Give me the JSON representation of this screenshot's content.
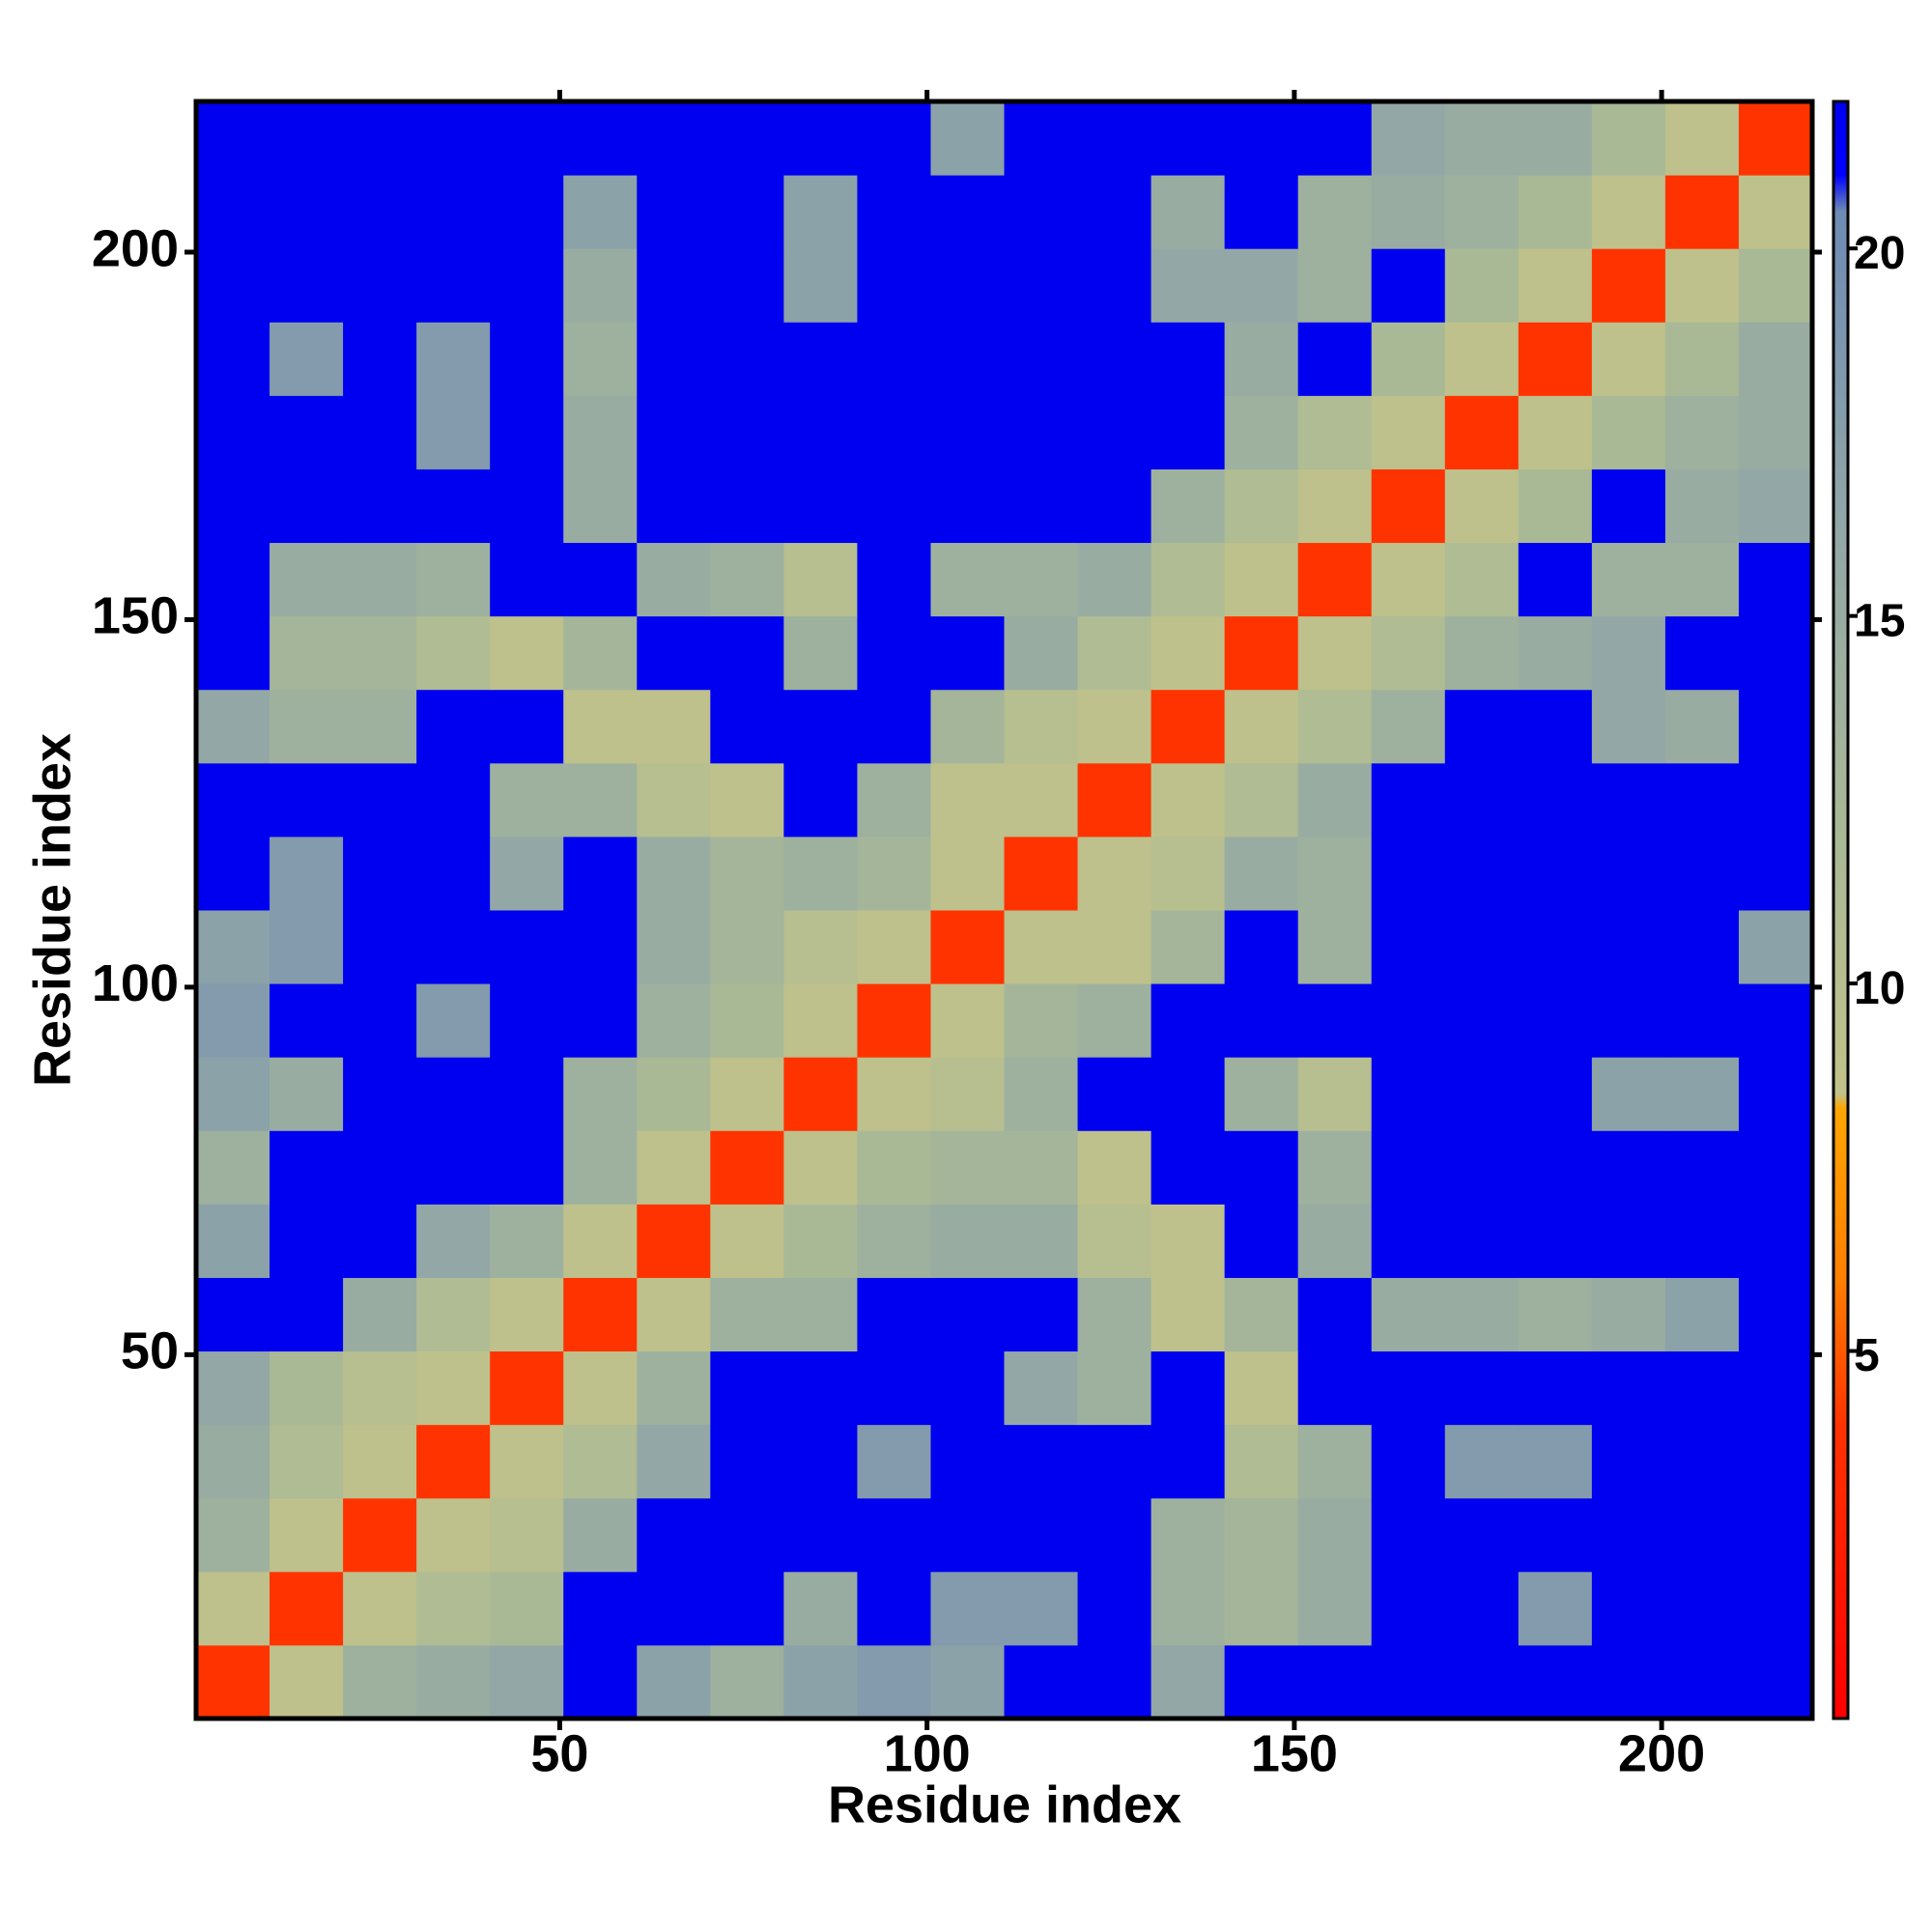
{
  "chart_data": {
    "type": "heatmap",
    "xlabel": "Residue index",
    "ylabel": "Residue index",
    "xbins": [
      0.5,
      10.5,
      20.5,
      30.5,
      40.5,
      50.5,
      60.5,
      70.5,
      80.5,
      90.5,
      100.5,
      110.5,
      120.5,
      130.5,
      140.5,
      150.5,
      160.5,
      170.5,
      180.5,
      190.5,
      200.5,
      210.5,
      220.5
    ],
    "ybins": [
      0.5,
      10.5,
      20.5,
      30.5,
      40.5,
      50.5,
      60.5,
      70.5,
      80.5,
      90.5,
      100.5,
      110.5,
      120.5,
      130.5,
      140.5,
      150.5,
      160.5,
      170.5,
      180.5,
      190.5,
      200.5,
      210.5,
      220.5
    ],
    "xlim": [
      0.5,
      220.5
    ],
    "ylim": [
      0.5,
      220.5
    ],
    "xticks": [
      50,
      100,
      150,
      200
    ],
    "yticks": [
      50,
      100,
      150,
      200
    ],
    "zlim": [
      0,
      22
    ],
    "zticks": [
      5,
      10,
      15,
      20
    ],
    "colorscale": [
      [
        0,
        "#ff0000"
      ],
      [
        4,
        "#ff3300"
      ],
      [
        6,
        "#ff8000"
      ],
      [
        8.3,
        "#ffa500"
      ],
      [
        8.5,
        "#c2c28a"
      ],
      [
        12,
        "#a9b996"
      ],
      [
        16,
        "#93a8a6"
      ],
      [
        20.5,
        "#6e8bb3"
      ],
      [
        21,
        "#0000ff"
      ],
      [
        22,
        "#0000f0"
      ]
    ],
    "z": [
      [
        4,
        9,
        14,
        15,
        16,
        22,
        17,
        14,
        17,
        18,
        17,
        22,
        22,
        16,
        22,
        22,
        22,
        22,
        22,
        22,
        22,
        22
      ],
      [
        9,
        4,
        9,
        11,
        12,
        22,
        22,
        22,
        15,
        22,
        18,
        18,
        22,
        14,
        13,
        15,
        22,
        22,
        18,
        22,
        22,
        22
      ],
      [
        14,
        9,
        4,
        9,
        10,
        15,
        22,
        22,
        22,
        22,
        22,
        22,
        22,
        14,
        13,
        15,
        22,
        22,
        22,
        22,
        22,
        22
      ],
      [
        15,
        11,
        9,
        4,
        9,
        11,
        16,
        22,
        22,
        18,
        22,
        22,
        22,
        22,
        11,
        14,
        22,
        18,
        18,
        22,
        22,
        22
      ],
      [
        16,
        12,
        10,
        9,
        4,
        9,
        14,
        22,
        22,
        22,
        22,
        16,
        14,
        22,
        9,
        22,
        22,
        22,
        22,
        22,
        22,
        22
      ],
      [
        22,
        22,
        15,
        11,
        9,
        4,
        9,
        14,
        14,
        22,
        22,
        22,
        14,
        9,
        13,
        22,
        15,
        15,
        14,
        15,
        17,
        22
      ],
      [
        17,
        22,
        22,
        16,
        14,
        9,
        4,
        9,
        12,
        14,
        15,
        15,
        10,
        9,
        22,
        15,
        22,
        22,
        22,
        22,
        22,
        22
      ],
      [
        14,
        22,
        22,
        22,
        22,
        14,
        9,
        4,
        9,
        12,
        13,
        13,
        9,
        22,
        22,
        14,
        22,
        22,
        22,
        22,
        22,
        22
      ],
      [
        17,
        15,
        22,
        22,
        22,
        14,
        12,
        9,
        4,
        9,
        10,
        14,
        22,
        22,
        14,
        10,
        22,
        22,
        22,
        17,
        17,
        22
      ],
      [
        18,
        22,
        22,
        18,
        22,
        22,
        14,
        12,
        9,
        4,
        9,
        13,
        14,
        22,
        22,
        22,
        22,
        22,
        22,
        22,
        22,
        22
      ],
      [
        17,
        18,
        22,
        22,
        22,
        22,
        15,
        13,
        10,
        9,
        4,
        9,
        9,
        13,
        22,
        14,
        22,
        22,
        22,
        22,
        22,
        17
      ],
      [
        22,
        18,
        22,
        22,
        16,
        22,
        15,
        13,
        14,
        13,
        9,
        4,
        9,
        10,
        15,
        14,
        22,
        22,
        22,
        22,
        22,
        22
      ],
      [
        22,
        22,
        22,
        22,
        14,
        14,
        10,
        9,
        22,
        14,
        9,
        9,
        4,
        9,
        11,
        15,
        22,
        22,
        22,
        22,
        22,
        22
      ],
      [
        16,
        14,
        14,
        22,
        22,
        9,
        9,
        22,
        22,
        22,
        13,
        10,
        9,
        4,
        9,
        11,
        14,
        22,
        22,
        16,
        15,
        22
      ],
      [
        22,
        13,
        13,
        11,
        9,
        13,
        22,
        22,
        14,
        22,
        22,
        15,
        11,
        9,
        4,
        9,
        11,
        14,
        15,
        16,
        22,
        22
      ],
      [
        22,
        15,
        15,
        14,
        22,
        22,
        15,
        14,
        10,
        22,
        14,
        14,
        15,
        11,
        9,
        4,
        9,
        11,
        22,
        14,
        14,
        22
      ],
      [
        22,
        22,
        22,
        22,
        22,
        15,
        22,
        22,
        22,
        22,
        22,
        22,
        22,
        14,
        11,
        9,
        4,
        9,
        12,
        22,
        15,
        16
      ],
      [
        22,
        22,
        22,
        18,
        22,
        15,
        22,
        22,
        22,
        22,
        22,
        22,
        22,
        22,
        14,
        11,
        9,
        4,
        9,
        12,
        14,
        15
      ],
      [
        22,
        18,
        22,
        18,
        22,
        14,
        22,
        22,
        22,
        22,
        22,
        22,
        22,
        22,
        15,
        22,
        12,
        9,
        4,
        9,
        12,
        15
      ],
      [
        22,
        22,
        22,
        22,
        22,
        15,
        22,
        22,
        17,
        22,
        22,
        22,
        22,
        16,
        16,
        14,
        22,
        12,
        9,
        4,
        9,
        12
      ],
      [
        22,
        22,
        22,
        22,
        22,
        17,
        22,
        22,
        17,
        22,
        22,
        22,
        22,
        15,
        22,
        14,
        15,
        14,
        12,
        9,
        4,
        9
      ],
      [
        22,
        22,
        22,
        22,
        22,
        22,
        22,
        22,
        22,
        22,
        17,
        22,
        22,
        22,
        22,
        22,
        16,
        15,
        15,
        12,
        9,
        4
      ]
    ]
  }
}
